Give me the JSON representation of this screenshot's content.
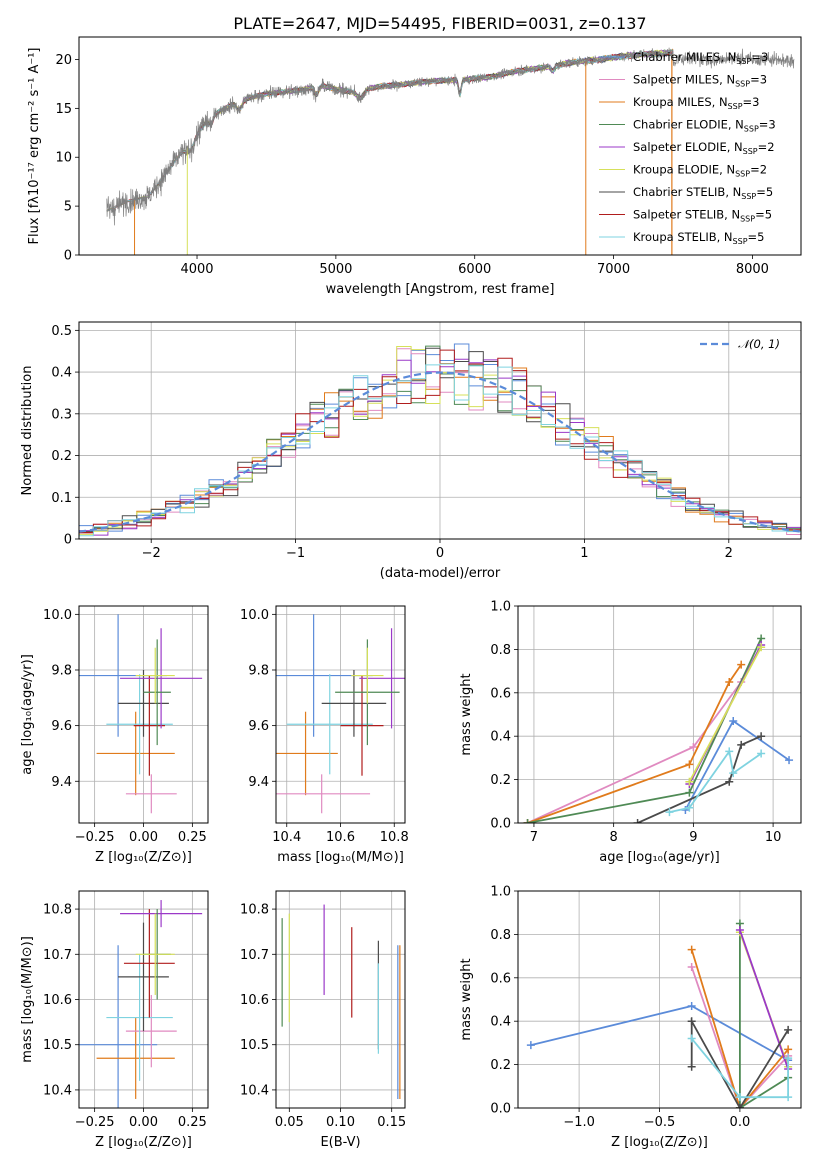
{
  "palette": {
    "blue": "#5b8bd9",
    "orange": "#e07b1c",
    "green": "#4f8a55",
    "pink": "#e08ac0",
    "purple": "#9b39c8",
    "yellow": "#d6e05a",
    "dark": "#4a4a4a",
    "red": "#b01d1d",
    "cyan": "#7fd3e0",
    "grey": "#808080",
    "normal": "#5b8bd9"
  },
  "chart_data": [
    {
      "id": "spectrum",
      "type": "line",
      "title": "PLATE=2647, MJD=54495, FIBERID=0031, z=0.137",
      "xlabel": "wavelength [Angstrom, rest frame]",
      "ylabel": "Flux [fλ10⁻¹⁷ erg cm⁻² s⁻¹ A⁻¹]",
      "xlim": [
        3150,
        8350
      ],
      "ylim": [
        0,
        22.3
      ],
      "xticks": [
        4000,
        5000,
        6000,
        7000,
        8000
      ],
      "yticks": [
        0,
        5,
        10,
        15,
        20
      ],
      "grid": false,
      "legend_position": "upper-right",
      "data_continuum": [
        [
          3350,
          4.5
        ],
        [
          3500,
          5.5
        ],
        [
          3650,
          6.0
        ],
        [
          3750,
          7.8
        ],
        [
          3850,
          9.8
        ],
        [
          3950,
          11.5
        ],
        [
          4100,
          14.2
        ],
        [
          4300,
          15.8
        ],
        [
          4500,
          16.5
        ],
        [
          4700,
          16.8
        ],
        [
          4900,
          17.3
        ],
        [
          5100,
          16.7
        ],
        [
          5300,
          17.2
        ],
        [
          5500,
          17.5
        ],
        [
          5700,
          17.8
        ],
        [
          5900,
          17.9
        ],
        [
          6100,
          18.2
        ],
        [
          6300,
          18.8
        ],
        [
          6500,
          19.2
        ],
        [
          6700,
          19.7
        ],
        [
          6900,
          20.0
        ],
        [
          7100,
          20.4
        ],
        [
          7300,
          20.6
        ],
        [
          7500,
          20.8
        ],
        [
          7700,
          20.8
        ],
        [
          7900,
          20.9
        ],
        [
          8100,
          20.8
        ],
        [
          8300,
          20.7
        ]
      ],
      "model_drops": {
        "Kroupa ELODIE": 3930,
        "Salpeter MILES": 3550,
        "Kroupa MILES": 6800
      },
      "series": [
        {
          "name": "Chabrier MILES, N",
          "sub": "SSP",
          "suffix": "=3",
          "color_key": "blue"
        },
        {
          "name": "Salpeter MILES, N",
          "sub": "SSP",
          "suffix": "=3",
          "color_key": "pink"
        },
        {
          "name": "Kroupa MILES, N",
          "sub": "SSP",
          "suffix": "=3",
          "color_key": "orange"
        },
        {
          "name": "Chabrier ELODIE, N",
          "sub": "SSP",
          "suffix": "=3",
          "color_key": "green"
        },
        {
          "name": "Salpeter ELODIE, N",
          "sub": "SSP",
          "suffix": "=2",
          "color_key": "purple"
        },
        {
          "name": "Kroupa ELODIE, N",
          "sub": "SSP",
          "suffix": "=2",
          "color_key": "yellow"
        },
        {
          "name": "Chabrier STELIB, N",
          "sub": "SSP",
          "suffix": "=5",
          "color_key": "dark"
        },
        {
          "name": "Salpeter STELIB, N",
          "sub": "SSP",
          "suffix": "=5",
          "color_key": "red"
        },
        {
          "name": "Kroupa STELIB, N",
          "sub": "SSP",
          "suffix": "=5",
          "color_key": "cyan"
        }
      ]
    },
    {
      "id": "residuals",
      "type": "line",
      "xlabel": "(data-model)/error",
      "ylabel": "Normed distribution",
      "xlim": [
        -2.5,
        2.5
      ],
      "ylim": [
        0,
        0.52
      ],
      "xticks": [
        -2,
        -1,
        0,
        1,
        2
      ],
      "yticks": [
        0.0,
        0.1,
        0.2,
        0.3,
        0.4,
        0.5
      ],
      "grid": true,
      "legend_position": "upper-right",
      "normal_label": "𝒩(0, 1)",
      "bin_width": 0.1,
      "series_color_keys": [
        "blue",
        "pink",
        "orange",
        "green",
        "purple",
        "yellow",
        "dark",
        "red",
        "cyan"
      ]
    },
    {
      "id": "z-age",
      "type": "scatter",
      "xlabel": "Z [log₁₀(Z/Z⊙)]",
      "ylabel": "age  [log₁₀(age/yr)]",
      "xlim": [
        -0.33,
        0.33
      ],
      "ylim": [
        9.25,
        10.03
      ],
      "xticks": [
        -0.25,
        0.0,
        0.25
      ],
      "yticks": [
        9.4,
        9.6,
        9.8,
        10.0
      ],
      "xtick_labels": [
        "−0.25",
        "0.00",
        "0.25"
      ],
      "ytick_labels": [
        "9.4",
        "9.6",
        "9.8",
        "10.0"
      ],
      "grid": true,
      "points": [
        {
          "color_key": "blue",
          "x": -0.13,
          "xerr": 0.25,
          "y": 9.78,
          "yerr": 0.22
        },
        {
          "color_key": "orange",
          "x": -0.04,
          "xerr": 0.2,
          "y": 9.5,
          "yerr": 0.15
        },
        {
          "color_key": "pink",
          "x": 0.04,
          "xerr": 0.13,
          "y": 9.355,
          "yerr": 0.07
        },
        {
          "color_key": "cyan",
          "x": -0.02,
          "xerr": 0.17,
          "y": 9.605,
          "yerr": 0.18
        },
        {
          "color_key": "dark",
          "x": 0.0,
          "xerr": 0.13,
          "y": 9.68,
          "yerr": 0.12
        },
        {
          "color_key": "red",
          "x": 0.03,
          "xerr": 0.08,
          "y": 9.6,
          "yerr": 0.18
        },
        {
          "color_key": "purple",
          "x": 0.09,
          "xerr": 0.21,
          "y": 9.77,
          "yerr": 0.18
        },
        {
          "color_key": "green",
          "x": 0.07,
          "xerr": 0.07,
          "y": 9.72,
          "yerr": 0.19
        },
        {
          "color_key": "yellow",
          "x": 0.06,
          "xerr": 0.1,
          "y": 9.78,
          "yerr": 0.1
        }
      ]
    },
    {
      "id": "mass-age",
      "type": "scatter",
      "xlabel": "mass [log₁₀(M/M⊙)]",
      "ylabel": "",
      "xlim": [
        10.36,
        10.84
      ],
      "ylim": [
        9.25,
        10.03
      ],
      "xticks": [
        10.4,
        10.6,
        10.8
      ],
      "yticks": [
        9.4,
        9.6,
        9.8,
        10.0
      ],
      "xtick_labels": [
        "10.4",
        "10.6",
        "10.8"
      ],
      "ytick_labels": [
        "9.4",
        "9.6",
        "9.8",
        "10.0"
      ],
      "grid": true,
      "points": [
        {
          "color_key": "blue",
          "x": 10.5,
          "xerr": 0.22,
          "y": 9.78,
          "yerr": 0.22
        },
        {
          "color_key": "orange",
          "x": 10.47,
          "xerr": 0.12,
          "y": 9.5,
          "yerr": 0.15
        },
        {
          "color_key": "pink",
          "x": 10.53,
          "xerr": 0.18,
          "y": 9.355,
          "yerr": 0.07
        },
        {
          "color_key": "cyan",
          "x": 10.56,
          "xerr": 0.16,
          "y": 9.605,
          "yerr": 0.18
        },
        {
          "color_key": "dark",
          "x": 10.65,
          "xerr": 0.12,
          "y": 9.68,
          "yerr": 0.12
        },
        {
          "color_key": "red",
          "x": 10.68,
          "xerr": 0.08,
          "y": 9.6,
          "yerr": 0.18
        },
        {
          "color_key": "purple",
          "x": 10.79,
          "xerr": 0.12,
          "y": 9.77,
          "yerr": 0.18
        },
        {
          "color_key": "green",
          "x": 10.7,
          "xerr": 0.12,
          "y": 9.72,
          "yerr": 0.19
        },
        {
          "color_key": "yellow",
          "x": 10.7,
          "xerr": 0.06,
          "y": 9.78,
          "yerr": 0.1
        }
      ]
    },
    {
      "id": "age-weight",
      "type": "line",
      "xlabel": "age  [log₁₀(age/yr)]",
      "ylabel": "mass weight",
      "xlim": [
        6.8,
        10.35
      ],
      "ylim": [
        0,
        1.0
      ],
      "xticks": [
        7,
        8,
        9,
        10
      ],
      "yticks": [
        0.0,
        0.2,
        0.4,
        0.6,
        0.8,
        1.0
      ],
      "xtick_labels": [
        "7",
        "8",
        "9",
        "10"
      ],
      "ytick_labels": [
        "0.0",
        "0.2",
        "0.4",
        "0.6",
        "0.8",
        "1.0"
      ],
      "grid": true,
      "series": [
        {
          "color_key": "blue",
          "points": [
            [
              8.9,
              0.06
            ],
            [
              9.5,
              0.47
            ],
            [
              10.2,
              0.29
            ]
          ]
        },
        {
          "color_key": "pink",
          "points": [
            [
              6.92,
              0.0
            ],
            [
              9.0,
              0.35
            ],
            [
              9.6,
              0.65
            ]
          ]
        },
        {
          "color_key": "orange",
          "points": [
            [
              6.92,
              0.0
            ],
            [
              8.95,
              0.27
            ],
            [
              9.45,
              0.65
            ],
            [
              9.6,
              0.73
            ]
          ]
        },
        {
          "color_key": "green",
          "points": [
            [
              6.92,
              0.0
            ],
            [
              8.95,
              0.14
            ],
            [
              9.85,
              0.85
            ]
          ]
        },
        {
          "color_key": "purple",
          "points": [
            [
              8.95,
              0.18
            ],
            [
              9.85,
              0.82
            ]
          ]
        },
        {
          "color_key": "yellow",
          "points": [
            [
              8.95,
              0.19
            ],
            [
              9.85,
              0.81
            ]
          ]
        },
        {
          "color_key": "dark",
          "points": [
            [
              8.3,
              0.0
            ],
            [
              9.45,
              0.19
            ],
            [
              9.6,
              0.36
            ],
            [
              9.85,
              0.4
            ]
          ]
        },
        {
          "color_key": "cyan",
          "points": [
            [
              8.7,
              0.05
            ],
            [
              8.95,
              0.07
            ],
            [
              9.45,
              0.33
            ],
            [
              9.5,
              0.23
            ],
            [
              9.85,
              0.32
            ]
          ]
        }
      ]
    },
    {
      "id": "z-mass",
      "type": "scatter",
      "xlabel": "Z [log₁₀(Z/Z⊙)]",
      "ylabel": "mass [log₁₀(M/M⊙)]",
      "xlim": [
        -0.33,
        0.33
      ],
      "ylim": [
        10.36,
        10.84
      ],
      "xticks": [
        -0.25,
        0.0,
        0.25
      ],
      "yticks": [
        10.4,
        10.5,
        10.6,
        10.7,
        10.8
      ],
      "xtick_labels": [
        "−0.25",
        "0.00",
        "0.25"
      ],
      "ytick_labels": [
        "10.4",
        "10.5",
        "10.6",
        "10.7",
        "10.8"
      ],
      "grid": true,
      "points": [
        {
          "color_key": "blue",
          "x": -0.13,
          "xerr": 0.2,
          "y": 10.5,
          "yerr": 0.22
        },
        {
          "color_key": "orange",
          "x": -0.04,
          "xerr": 0.2,
          "y": 10.47,
          "yerr": 0.09
        },
        {
          "color_key": "pink",
          "x": 0.04,
          "xerr": 0.13,
          "y": 10.53,
          "yerr": 0.08
        },
        {
          "color_key": "cyan",
          "x": -0.02,
          "xerr": 0.17,
          "y": 10.56,
          "yerr": 0.14
        },
        {
          "color_key": "dark",
          "x": 0.0,
          "xerr": 0.13,
          "y": 10.65,
          "yerr": 0.12
        },
        {
          "color_key": "red",
          "x": 0.03,
          "xerr": 0.13,
          "y": 10.68,
          "yerr": 0.12
        },
        {
          "color_key": "purple",
          "x": 0.09,
          "xerr": 0.21,
          "y": 10.79,
          "yerr": 0.03
        },
        {
          "color_key": "green",
          "x": 0.07,
          "xerr": 0.07,
          "y": 10.7,
          "yerr": 0.1
        },
        {
          "color_key": "yellow",
          "x": 0.06,
          "xerr": 0.1,
          "y": 10.7,
          "yerr": 0.09
        }
      ]
    },
    {
      "id": "ebv-mass",
      "type": "scatter",
      "xlabel": "E(B-V)",
      "ylabel": "",
      "xlim": [
        0.037,
        0.163
      ],
      "ylim": [
        10.36,
        10.84
      ],
      "xticks": [
        0.05,
        0.1,
        0.15
      ],
      "yticks": [
        10.4,
        10.5,
        10.6,
        10.7,
        10.8
      ],
      "xtick_labels": [
        "0.05",
        "0.10",
        "0.15"
      ],
      "ytick_labels": [
        "10.4",
        "10.5",
        "10.6",
        "10.7",
        "10.8"
      ],
      "grid": true,
      "points": [
        {
          "color_key": "green",
          "x": 0.043,
          "y": 10.66,
          "yerr": 0.12
        },
        {
          "color_key": "yellow",
          "x": 0.05,
          "y": 10.67,
          "yerr": 0.12
        },
        {
          "color_key": "purple",
          "x": 0.084,
          "y": 10.71,
          "yerr": 0.1
        },
        {
          "color_key": "red",
          "x": 0.111,
          "y": 10.66,
          "yerr": 0.1
        },
        {
          "color_key": "dark",
          "x": 0.137,
          "y": 10.61,
          "yerr": 0.12
        },
        {
          "color_key": "cyan",
          "x": 0.137,
          "y": 10.58,
          "yerr": 0.1
        },
        {
          "color_key": "blue",
          "x": 0.156,
          "y": 10.55,
          "yerr": 0.17
        },
        {
          "color_key": "orange",
          "x": 0.158,
          "y": 10.55,
          "yerr": 0.17
        }
      ]
    },
    {
      "id": "z-weight",
      "type": "line",
      "xlabel": "Z [log₁₀(Z/Z⊙)]",
      "ylabel": "mass weight",
      "xlim": [
        -1.38,
        0.38
      ],
      "ylim": [
        0,
        1.0
      ],
      "xticks": [
        -1.0,
        -0.5,
        0.0
      ],
      "yticks": [
        0.0,
        0.2,
        0.4,
        0.6,
        0.8,
        1.0
      ],
      "xtick_labels": [
        "−1.0",
        "−0.5",
        "0.0"
      ],
      "ytick_labels": [
        "0.0",
        "0.2",
        "0.4",
        "0.6",
        "0.8",
        "1.0"
      ],
      "grid": true,
      "series": [
        {
          "color_key": "blue",
          "points": [
            [
              -1.3,
              0.29
            ],
            [
              -0.3,
              0.47
            ],
            [
              0.3,
              0.22
            ]
          ]
        },
        {
          "color_key": "pink",
          "points": [
            [
              -0.3,
              0.65
            ],
            [
              0.0,
              0.0
            ],
            [
              0.3,
              0.24
            ]
          ]
        },
        {
          "color_key": "orange",
          "points": [
            [
              -0.3,
              0.73
            ],
            [
              0.0,
              0.0
            ],
            [
              0.3,
              0.27
            ]
          ]
        },
        {
          "color_key": "green",
          "points": [
            [
              0.0,
              0.85
            ],
            [
              0.0,
              0.0
            ],
            [
              0.3,
              0.14
            ]
          ]
        },
        {
          "color_key": "yellow",
          "points": [
            [
              0.0,
              0.81
            ],
            [
              0.3,
              0.19
            ]
          ]
        },
        {
          "color_key": "purple",
          "points": [
            [
              0.0,
              0.82
            ],
            [
              0.3,
              0.18
            ]
          ]
        },
        {
          "color_key": "dark",
          "points": [
            [
              -0.3,
              0.19
            ],
            [
              -0.3,
              0.4
            ],
            [
              0.0,
              0.0
            ],
            [
              0.3,
              0.36
            ]
          ]
        },
        {
          "color_key": "cyan",
          "points": [
            [
              -0.3,
              0.32
            ],
            [
              0.0,
              0.05
            ],
            [
              0.3,
              0.05
            ],
            [
              0.3,
              0.23
            ]
          ]
        }
      ]
    }
  ]
}
